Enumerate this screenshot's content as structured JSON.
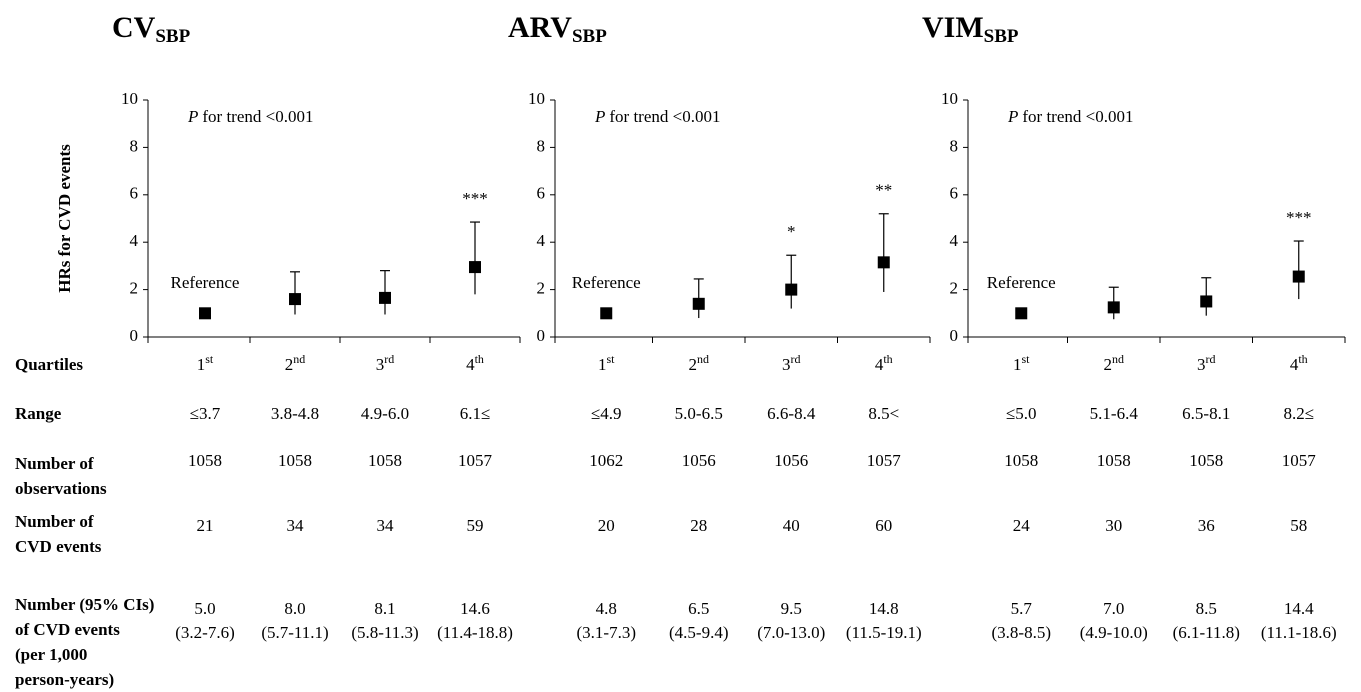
{
  "row_labels": [
    [
      "Quartiles"
    ],
    [
      "Range"
    ],
    [
      "Number of",
      "observations"
    ],
    [
      "Number of",
      "CVD events"
    ],
    [
      "Number (95% CIs)",
      "of CVD events",
      "(per 1,000",
      " person-years)"
    ]
  ],
  "chart_data": [
    {
      "type": "errorbar",
      "title": "CV",
      "title_subscript": "SBP",
      "y_label": "HRs for CVD events",
      "annotation_italic": "P",
      "annotation": "for trend <0.001",
      "reference_label": "Reference",
      "categories": [
        "1",
        "2",
        "3",
        "4"
      ],
      "category_superscripts": [
        "st",
        "nd",
        "rd",
        "th"
      ],
      "values": [
        1,
        1.6,
        1.65,
        2.95
      ],
      "ci_low": [
        null,
        0.95,
        0.95,
        1.8
      ],
      "ci_high": [
        null,
        2.75,
        2.8,
        4.85
      ],
      "significance": [
        null,
        null,
        null,
        "***"
      ],
      "ylim": [
        0,
        10
      ],
      "yticks": [
        0,
        2,
        4,
        6,
        8,
        10
      ],
      "color": "#000000",
      "range": [
        "≤3.7",
        "3.8-4.8",
        "4.9-6.0",
        "6.1≤"
      ],
      "observations": [
        "1058",
        "1058",
        "1058",
        "1057"
      ],
      "events": [
        "21",
        "34",
        "34",
        "59"
      ],
      "incidence": [
        "5.0",
        "8.0",
        "8.1",
        "14.6"
      ],
      "incidence_ci": [
        "(3.2-7.6)",
        "(5.7-11.1)",
        "(5.8-11.3)",
        "(11.4-18.8)"
      ]
    },
    {
      "type": "errorbar",
      "title": "ARV",
      "title_subscript": "SBP",
      "annotation_italic": "P",
      "annotation": "for trend <0.001",
      "reference_label": "Reference",
      "categories": [
        "1",
        "2",
        "3",
        "4"
      ],
      "category_superscripts": [
        "st",
        "nd",
        "rd",
        "th"
      ],
      "values": [
        1,
        1.4,
        2.0,
        3.15
      ],
      "ci_low": [
        null,
        0.8,
        1.2,
        1.9
      ],
      "ci_high": [
        null,
        2.45,
        3.45,
        5.2
      ],
      "significance": [
        null,
        null,
        "*",
        "**"
      ],
      "ylim": [
        0,
        10
      ],
      "yticks": [
        0,
        2,
        4,
        6,
        8,
        10
      ],
      "color": "#000000",
      "range": [
        "≤4.9",
        "5.0-6.5",
        "6.6-8.4",
        "8.5<"
      ],
      "observations": [
        "1062",
        "1056",
        "1056",
        "1057"
      ],
      "events": [
        "20",
        "28",
        "40",
        "60"
      ],
      "incidence": [
        "4.8",
        "6.5",
        "9.5",
        "14.8"
      ],
      "incidence_ci": [
        "(3.1-7.3)",
        "(4.5-9.4)",
        "(7.0-13.0)",
        "(11.5-19.1)"
      ]
    },
    {
      "type": "errorbar",
      "title": "VIM",
      "title_subscript": "SBP",
      "annotation_italic": "P",
      "annotation": "for trend <0.001",
      "reference_label": "Reference",
      "categories": [
        "1",
        "2",
        "3",
        "4"
      ],
      "category_superscripts": [
        "st",
        "nd",
        "rd",
        "th"
      ],
      "values": [
        1,
        1.25,
        1.5,
        2.55
      ],
      "ci_low": [
        null,
        0.75,
        0.9,
        1.6
      ],
      "ci_high": [
        null,
        2.1,
        2.5,
        4.05
      ],
      "significance": [
        null,
        null,
        null,
        "***"
      ],
      "ylim": [
        0,
        10
      ],
      "yticks": [
        0,
        2,
        4,
        6,
        8,
        10
      ],
      "color": "#000000",
      "range": [
        "≤5.0",
        "5.1-6.4",
        "6.5-8.1",
        "8.2≤"
      ],
      "observations": [
        "1058",
        "1058",
        "1058",
        "1057"
      ],
      "events": [
        "24",
        "30",
        "36",
        "58"
      ],
      "incidence": [
        "5.7",
        "7.0",
        "8.5",
        "14.4"
      ],
      "incidence_ci": [
        "(3.8-8.5)",
        "(4.9-10.0)",
        "(6.1-11.8)",
        "(11.1-18.6)"
      ]
    }
  ]
}
